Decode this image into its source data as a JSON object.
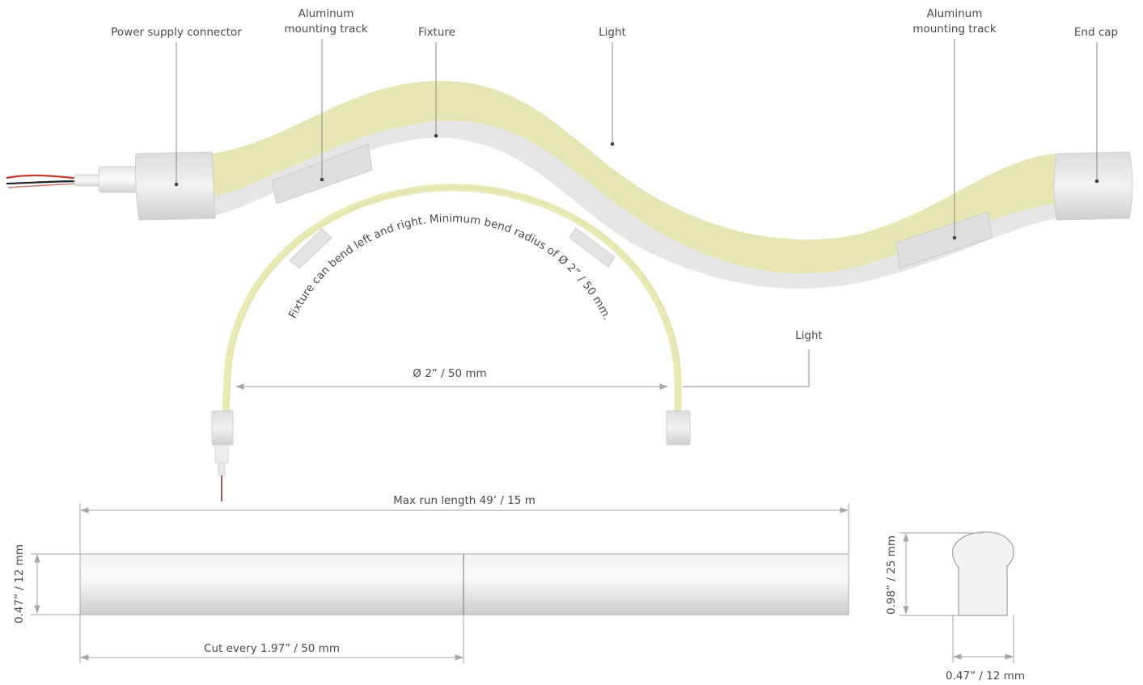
{
  "labels": {
    "power_supply_connector": "Power supply connector",
    "aluminum_track_left_l1": "Aluminum",
    "aluminum_track_left_l2": "mounting track",
    "fixture": "Fixture",
    "light_top": "Light",
    "aluminum_track_right_l1": "Aluminum",
    "aluminum_track_right_l2": "mounting track",
    "end_cap": "End cap",
    "light_side": "Light"
  },
  "bend": {
    "note": "Fixture can bend left and right. Minimum bend radius of Ø 2” / 50 mm.",
    "diameter": "Ø 2” / 50 mm"
  },
  "dimensions": {
    "max_run": "Max run length 49’ / 15 m",
    "height": "0.47” / 12 mm",
    "cut_every": "Cut every 1.97” / 50 mm",
    "profile_height": "0.98” / 25 mm",
    "profile_width": "0.47” / 12 mm"
  },
  "colors": {
    "light": "#e6e6b4",
    "track": "#e2e2e2",
    "cap": "#d0d0d0",
    "wire_red": "#c0392b",
    "wire_black": "#222222"
  }
}
